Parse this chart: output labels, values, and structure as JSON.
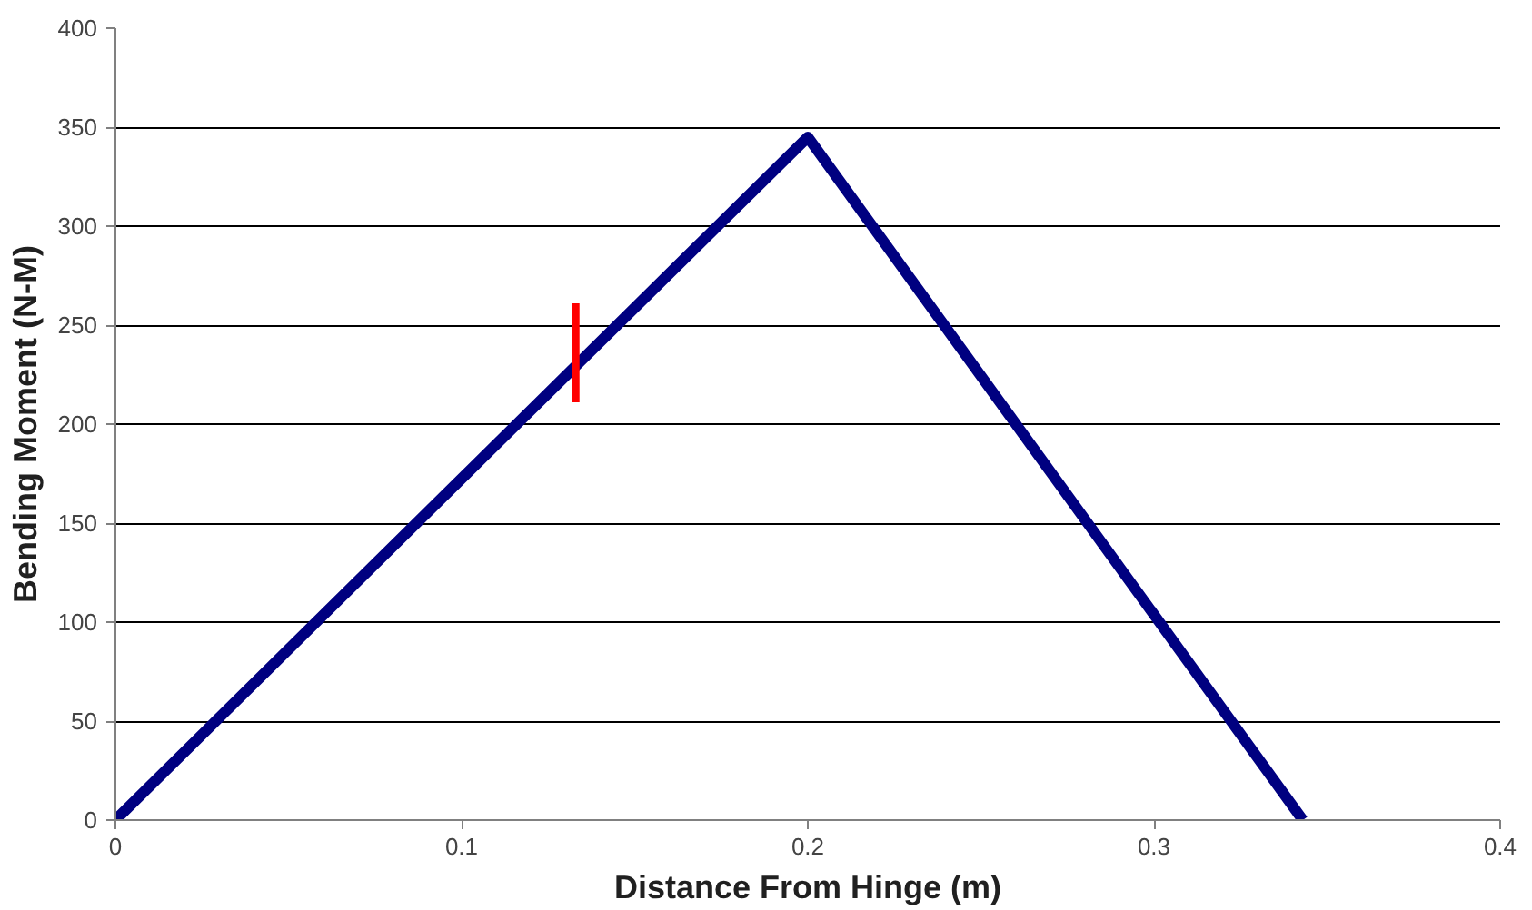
{
  "chart_data": {
    "type": "line",
    "xlabel": "Distance From Hinge (m)",
    "ylabel": "Bending Moment (N-M)",
    "xlim": [
      0,
      0.4
    ],
    "xticks": [
      0,
      0.1,
      0.2,
      0.3,
      0.4
    ],
    "ylim": [
      0,
      400
    ],
    "yticks": [
      0,
      50,
      100,
      150,
      200,
      250,
      300,
      350,
      400
    ],
    "grid": "y",
    "series": [
      {
        "color": "#000080",
        "x": [
          0,
          0.2,
          0.343
        ],
        "values": [
          0,
          345,
          0
        ]
      },
      {
        "color": "#ff0000",
        "x": [
          0.133,
          0.133
        ],
        "values": [
          211,
          261
        ]
      }
    ]
  }
}
